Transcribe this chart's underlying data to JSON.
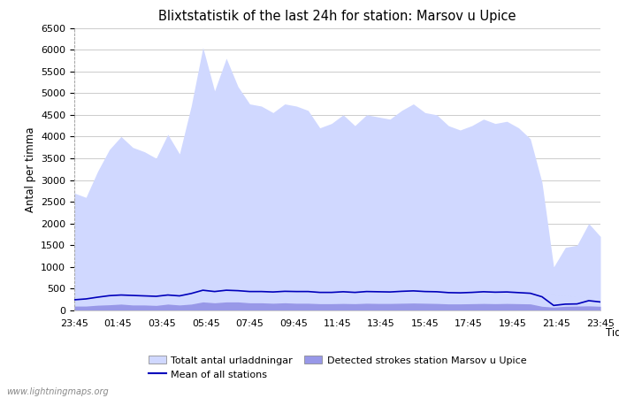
{
  "title": "Blixtstatistik of the last 24h for station: Marsov u Upice",
  "xlabel": "Tid",
  "ylabel": "Antal per timma",
  "x_ticks": [
    "23:45",
    "01:45",
    "03:45",
    "05:45",
    "07:45",
    "09:45",
    "11:45",
    "13:45",
    "15:45",
    "17:45",
    "19:45",
    "21:45",
    "23:45"
  ],
  "ylim": [
    0,
    6500
  ],
  "yticks": [
    0,
    500,
    1000,
    1500,
    2000,
    2500,
    3000,
    3500,
    4000,
    4500,
    5000,
    5500,
    6000,
    6500
  ],
  "watermark": "www.lightningmaps.org",
  "bg_color": "#ffffff",
  "plot_bg_color": "#ffffff",
  "grid_color": "#cccccc",
  "fill_totalt_color": "#d0d8ff",
  "fill_station_color": "#9898e8",
  "mean_line_color": "#0000bb",
  "left_dotted_color": "#aaaaaa",
  "totalt_values": [
    2700,
    2600,
    3200,
    3700,
    4000,
    3750,
    3650,
    3500,
    4050,
    3600,
    4700,
    6050,
    5050,
    5800,
    5150,
    4750,
    4700,
    4550,
    4750,
    4700,
    4600,
    4200,
    4300,
    4500,
    4250,
    4500,
    4450,
    4400,
    4600,
    4750,
    4550,
    4500,
    4250,
    4150,
    4250,
    4400,
    4300,
    4350,
    4200,
    3950,
    2950,
    1000,
    1450,
    1500,
    2000,
    1700
  ],
  "station_values": [
    100,
    100,
    120,
    130,
    145,
    125,
    125,
    115,
    145,
    125,
    145,
    195,
    175,
    195,
    195,
    175,
    175,
    165,
    175,
    165,
    165,
    155,
    155,
    160,
    155,
    165,
    160,
    160,
    165,
    170,
    165,
    160,
    150,
    150,
    155,
    160,
    155,
    160,
    155,
    150,
    95,
    75,
    95,
    100,
    105,
    95
  ],
  "mean_values": [
    245,
    265,
    305,
    340,
    355,
    345,
    335,
    325,
    355,
    335,
    390,
    465,
    435,
    465,
    455,
    435,
    435,
    425,
    440,
    435,
    435,
    415,
    415,
    430,
    415,
    435,
    430,
    425,
    440,
    450,
    435,
    430,
    410,
    405,
    415,
    430,
    420,
    425,
    410,
    395,
    315,
    115,
    145,
    150,
    225,
    195
  ],
  "legend_labels": [
    "Totalt antal urladdningar",
    "Mean of all stations",
    "Detected strokes station Marsov u Upice"
  ]
}
